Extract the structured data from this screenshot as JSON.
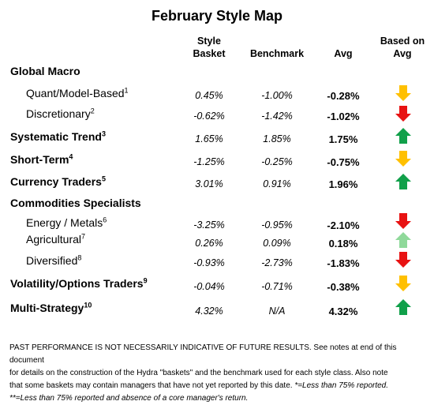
{
  "title": "February Style Map",
  "headers": {
    "style_basket_1": "Style",
    "style_basket_2": "Basket",
    "benchmark": "Benchmark",
    "avg": "Avg",
    "based_on_1": "Based on",
    "based_on_2": "Avg"
  },
  "rows": [
    {
      "label": "Global Macro",
      "sup": "",
      "style": "",
      "bench": "",
      "avg": "",
      "arrow": "",
      "arrow_color": ""
    },
    {
      "label": "Quant/Model-Based",
      "sup": "1",
      "style": "0.45%",
      "bench": "-1.00%",
      "avg": "-0.28%",
      "arrow": "down",
      "arrow_color": "#ffc000"
    },
    {
      "label": "Discretionary",
      "sup": "2",
      "style": "-0.62%",
      "bench": "-1.42%",
      "avg": "-1.02%",
      "arrow": "down",
      "arrow_color": "#e81313"
    },
    {
      "label": "Systematic Trend",
      "sup": "3",
      "style": "1.65%",
      "bench": "1.85%",
      "avg": "1.75%",
      "arrow": "up",
      "arrow_color": "#11a04a"
    },
    {
      "label": "Short-Term",
      "sup": "4",
      "style": "-1.25%",
      "bench": "-0.25%",
      "avg": "-0.75%",
      "arrow": "down",
      "arrow_color": "#ffc000"
    },
    {
      "label": "Currency Traders",
      "sup": "5",
      "style": "3.01%",
      "bench": "0.91%",
      "avg": "1.96%",
      "arrow": "up",
      "arrow_color": "#11a04a"
    },
    {
      "label": "Commodities Specialists",
      "sup": "",
      "style": "",
      "bench": "",
      "avg": "",
      "arrow": "",
      "arrow_color": ""
    },
    {
      "label": "Energy / Metals",
      "sup": "6",
      "style": "-3.25%",
      "bench": "-0.95%",
      "avg": "-2.10%",
      "arrow": "down",
      "arrow_color": "#e81313"
    },
    {
      "label": "Agricultural",
      "sup": "7",
      "style": "0.26%",
      "bench": "0.09%",
      "avg": "0.18%",
      "arrow": "up",
      "arrow_color": "#8fd99a"
    },
    {
      "label": "Diversified",
      "sup": "8",
      "style": "-0.93%",
      "bench": "-2.73%",
      "avg": "-1.83%",
      "arrow": "down",
      "arrow_color": "#e81313"
    },
    {
      "label": "Volatility/Options Traders",
      "sup": "9",
      "style": "-0.04%",
      "bench": "-0.71%",
      "avg": "-0.38%",
      "arrow": "down",
      "arrow_color": "#ffc000"
    },
    {
      "label": "Multi-Strategy",
      "sup": "10",
      "style": "4.32%",
      "bench": "N/A",
      "avg": "4.32%",
      "arrow": "up",
      "arrow_color": "#11a04a"
    }
  ],
  "footer": {
    "line1": "PAST PERFORMANCE IS NOT NECESSARILY INDICATIVE OF FUTURE RESULTS.  See notes at end of this document",
    "line2": "for details on the construction of the Hydra \"baskets\" and the benchmark used for each style class.  Also note",
    "line3a": "that some baskets may contain managers that have not yet reported by this date.  ",
    "line3b": "*=Less than 75% reported.",
    "line4": "**=Less than 75% reported and absence of a core manager's return."
  }
}
